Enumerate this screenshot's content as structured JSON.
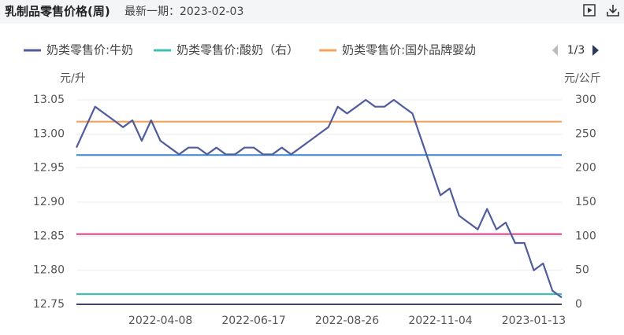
{
  "header": {
    "title": "乳制品零售价格(周)",
    "latest": "最新一期：2023-02-03"
  },
  "chart_data": {
    "type": "line",
    "y_label": "元/升",
    "y2_label": "元/公斤",
    "legend_page": "1/3",
    "categories": [
      null,
      null,
      null,
      null,
      null,
      null,
      null,
      null,
      null,
      "2022-04-08",
      null,
      null,
      null,
      null,
      null,
      null,
      null,
      null,
      null,
      "2022-06-17",
      null,
      null,
      null,
      null,
      null,
      null,
      null,
      null,
      null,
      "2022-08-26",
      null,
      null,
      null,
      null,
      null,
      null,
      null,
      null,
      null,
      "2022-11-04",
      null,
      null,
      null,
      null,
      null,
      null,
      null,
      null,
      null,
      "2023-01-13",
      null,
      null,
      null
    ],
    "ylim": [
      12.75,
      13.05
    ],
    "yticks": [
      12.75,
      {
        "value": 12.8,
        "label": "12.80"
      },
      12.85,
      {
        "value": 12.9,
        "label": "12.90"
      },
      12.95,
      {
        "value": 13.0,
        "label": "13.00"
      },
      13.05
    ],
    "y2lim": [
      0,
      300
    ],
    "y2ticks": [
      0,
      50,
      100,
      150,
      200,
      250,
      300
    ],
    "grid": true,
    "series": [
      {
        "name": "奶类零售价:牛奶",
        "color": "#505c9c",
        "values": [
          12.98,
          13.01,
          13.04,
          13.03,
          13.02,
          13.01,
          13.02,
          12.99,
          13.02,
          12.99,
          12.98,
          12.97,
          12.98,
          12.98,
          12.97,
          12.98,
          12.97,
          12.97,
          12.98,
          12.98,
          12.97,
          12.97,
          12.98,
          12.97,
          12.98,
          12.99,
          13.0,
          13.01,
          13.04,
          13.03,
          13.04,
          13.05,
          13.04,
          13.04,
          13.05,
          13.04,
          13.03,
          12.99,
          12.95,
          12.91,
          12.92,
          12.88,
          12.87,
          12.86,
          12.89,
          12.86,
          12.87,
          12.84,
          12.84,
          12.8,
          12.81,
          12.77,
          12.76
        ]
      },
      {
        "name": "奶类零售价:酸奶（右）",
        "color": "#3ebfb0",
        "axis": "y2",
        "values": [
          15,
          15,
          15,
          15,
          15,
          15,
          15,
          15,
          15,
          15,
          15,
          15,
          15,
          15,
          15,
          15,
          15,
          15,
          15,
          15,
          15,
          15,
          15,
          15,
          15,
          15,
          15,
          15,
          15,
          15,
          15,
          15,
          15,
          15,
          15,
          15,
          15,
          15,
          15,
          15,
          15,
          15,
          15,
          15,
          15,
          15,
          15,
          15,
          15,
          15,
          15,
          15,
          15
        ]
      },
      {
        "name": "奶类零售价:国外品牌婴幼",
        "color": "#f2a25c",
        "axis": "y2",
        "values": [
          268,
          268,
          268,
          268,
          268,
          268,
          268,
          268,
          268,
          268,
          268,
          268,
          268,
          268,
          268,
          268,
          268,
          268,
          268,
          268,
          268,
          268,
          268,
          268,
          268,
          268,
          268,
          268,
          268,
          268,
          268,
          268,
          268,
          268,
          268,
          268,
          268,
          268,
          268,
          268,
          268,
          268,
          268,
          268,
          268,
          268,
          268,
          268,
          268,
          268,
          268,
          268,
          268
        ]
      },
      {
        "color": "#4a8fd6",
        "axis": "y2",
        "values": [
          219,
          219,
          219,
          219,
          219,
          219,
          219,
          219,
          219,
          219,
          219,
          219,
          219,
          219,
          219,
          219,
          219,
          219,
          219,
          219,
          219,
          219,
          219,
          219,
          219,
          219,
          219,
          219,
          219,
          219,
          219,
          219,
          219,
          219,
          219,
          219,
          219,
          219,
          219,
          219,
          219,
          219,
          219,
          219,
          219,
          219,
          219,
          219,
          219,
          219,
          219,
          219,
          219
        ]
      },
      {
        "color": "#e0468c",
        "axis": "y2",
        "values": [
          103,
          103,
          103,
          103,
          103,
          103,
          103,
          103,
          103,
          103,
          103,
          103,
          103,
          103,
          103,
          103,
          103,
          103,
          103,
          103,
          103,
          103,
          103,
          103,
          103,
          103,
          103,
          103,
          103,
          103,
          103,
          103,
          103,
          103,
          103,
          103,
          103,
          103,
          103,
          103,
          103,
          103,
          103,
          103,
          103,
          103,
          103,
          103,
          103,
          103,
          103,
          103,
          103
        ]
      }
    ]
  }
}
